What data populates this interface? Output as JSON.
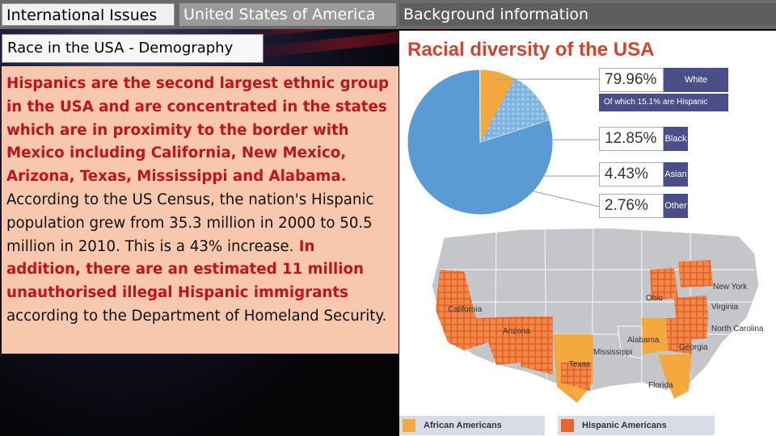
{
  "tabs": [
    {
      "label": "International Issues"
    },
    {
      "label": "United States of America"
    },
    {
      "label": "Background information"
    }
  ],
  "subtitle": "Race in the USA - Demography",
  "body": {
    "red_intro": "Hispanics are the second largest ethnic group in the USA and are concentrated in the states which are in proximity to the border with Mexico including California, New Mexico, Arizona, Texas, Mississippi and Alabama.",
    "plain_1": " According to the US Census, the nation's Hispanic population grew from 35.3 million in 2000 to 50.5 million in 2010. This is a 43% increase.",
    "red_2": " In addition, there are an estimated 11 million unauthorised illegal Hispanic immigrants",
    "plain_2": " according to the Department of Homeland Security."
  },
  "infographic": {
    "title": "Racial diversity of the USA",
    "stats": [
      {
        "pct": "79.96%",
        "label": "White",
        "value": 79.96,
        "color": "#5b9bd5"
      },
      {
        "pct": "12.85%",
        "label": "Black",
        "value": 12.85,
        "color": "#f4a93f"
      },
      {
        "pct": "4.43%",
        "label": "Asian",
        "value": 4.43,
        "color": "#2f9e46"
      },
      {
        "pct": "2.76%",
        "label": "Other",
        "value": 2.76,
        "color": "#1f4f7a"
      }
    ],
    "note": "Of which 15.1% are Hispanic",
    "legend": [
      {
        "label": "African Americans",
        "color": "#f4a93f"
      },
      {
        "label": "Hispanic Americans",
        "color": "#e8652c"
      }
    ],
    "states": {
      "new_york": "New York",
      "ohio": "Ohio",
      "virginia": "Virginia",
      "california": "California",
      "north_carolina": "North Carolina",
      "arizona": "Arizona",
      "alabama": "Alabama",
      "mississippi": "Mississippi",
      "georgia": "Georgia",
      "texas": "Texas",
      "florida": "Florida"
    }
  }
}
